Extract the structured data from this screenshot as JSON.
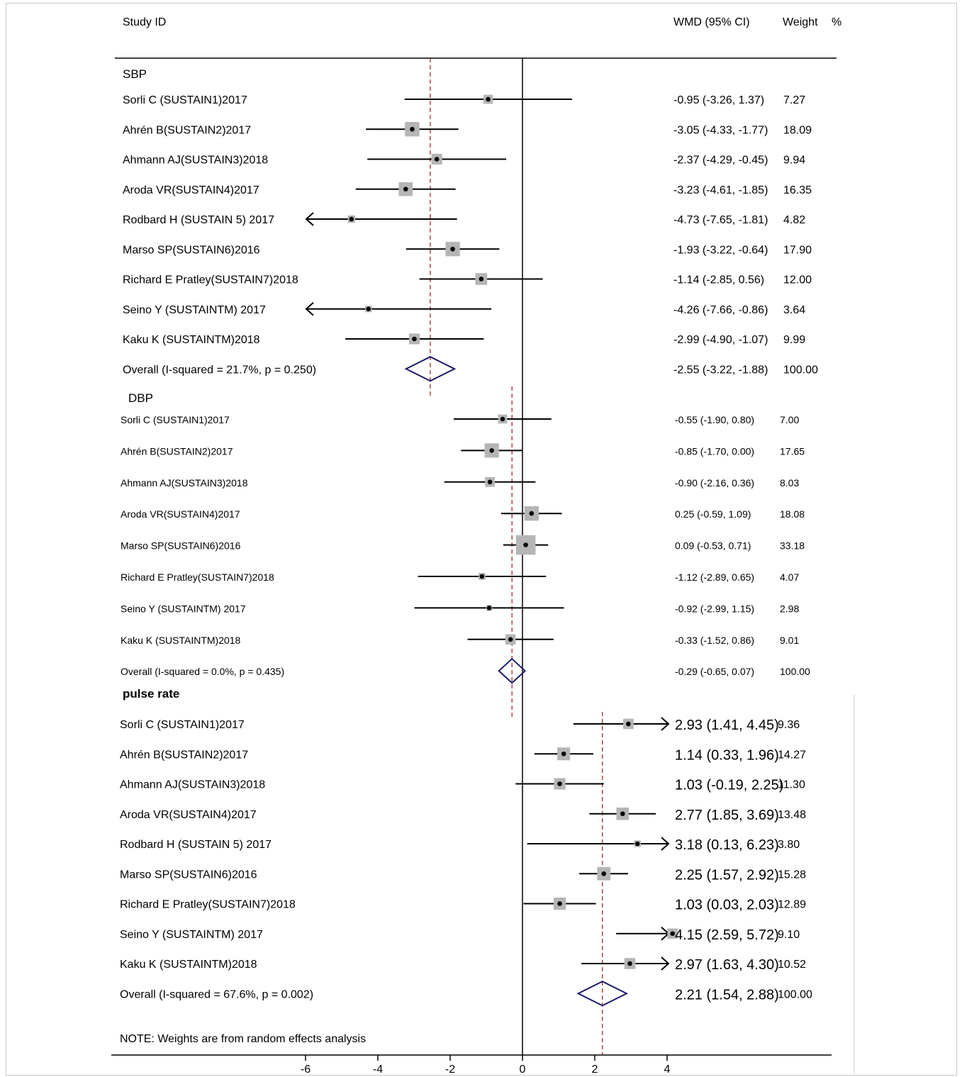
{
  "chart_data": {
    "type": "forest",
    "header": {
      "study": "Study   ID",
      "effect": "WMD (95% CI)",
      "weight": "Weight",
      "pct": "%"
    },
    "x_ticks": [
      -6,
      -4,
      -2,
      0,
      2,
      4
    ],
    "note": "NOTE: Weights are from random effects analysis",
    "groups": [
      {
        "title": "SBP",
        "overall_label": "Overall  (I-squared = 21.7%, p = 0.250)",
        "overall": {
          "est": -2.55,
          "lo": -3.22,
          "hi": -1.88,
          "ci_text": "-2.55 (-3.22, -1.88)",
          "weight": "100.00"
        },
        "studies": [
          {
            "label": "Sorli C (SUSTAIN1)2017",
            "est": -0.95,
            "lo": -3.26,
            "hi": 1.37,
            "ci_text": "-0.95 (-3.26, 1.37)",
            "weight": "7.27"
          },
          {
            "label": "Ahrén B(SUSTAIN2)2017",
            "est": -3.05,
            "lo": -4.33,
            "hi": -1.77,
            "ci_text": "-3.05 (-4.33, -1.77)",
            "weight": "18.09"
          },
          {
            "label": "Ahmann AJ(SUSTAIN3)2018",
            "est": -2.37,
            "lo": -4.29,
            "hi": -0.45,
            "ci_text": "-2.37 (-4.29, -0.45)",
            "weight": "9.94"
          },
          {
            "label": "Aroda VR(SUSTAIN4)2017",
            "est": -3.23,
            "lo": -4.61,
            "hi": -1.85,
            "ci_text": "-3.23 (-4.61, -1.85)",
            "weight": "16.35"
          },
          {
            "label": "Rodbard H (SUSTAIN 5) 2017",
            "est": -4.73,
            "lo": -7.65,
            "hi": -1.81,
            "ci_text": "-4.73 (-7.65, -1.81)",
            "weight": "4.82"
          },
          {
            "label": "Marso SP(SUSTAIN6)2016",
            "est": -1.93,
            "lo": -3.22,
            "hi": -0.64,
            "ci_text": "-1.93 (-3.22, -0.64)",
            "weight": "17.90"
          },
          {
            "label": "Richard E Pratley(SUSTAIN7)2018",
            "est": -1.14,
            "lo": -2.85,
            "hi": 0.56,
            "ci_text": "-1.14 (-2.85, 0.56)",
            "weight": "12.00"
          },
          {
            "label": "Seino Y (SUSTAINTM) 2017",
            "est": -4.26,
            "lo": -7.66,
            "hi": -0.86,
            "ci_text": "-4.26 (-7.66, -0.86)",
            "weight": "3.64"
          },
          {
            "label": "Kaku K (SUSTAINTM)2018",
            "est": -2.99,
            "lo": -4.9,
            "hi": -1.07,
            "ci_text": "-2.99 (-4.90, -1.07)",
            "weight": "9.99"
          }
        ]
      },
      {
        "title": "DBP",
        "overall_label": "Overall  (I-squared = 0.0%, p = 0.435)",
        "overall": {
          "est": -0.29,
          "lo": -0.65,
          "hi": 0.07,
          "ci_text": "-0.29 (-0.65, 0.07)",
          "weight": "100.00"
        },
        "studies": [
          {
            "label": "Sorli C (SUSTAIN1)2017",
            "est": -0.55,
            "lo": -1.9,
            "hi": 0.8,
            "ci_text": "-0.55 (-1.90, 0.80)",
            "weight": "7.00"
          },
          {
            "label": "Ahrén B(SUSTAIN2)2017",
            "est": -0.85,
            "lo": -1.7,
            "hi": 0.0,
            "ci_text": "-0.85 (-1.70, 0.00)",
            "weight": "17.65"
          },
          {
            "label": "Ahmann AJ(SUSTAIN3)2018",
            "est": -0.9,
            "lo": -2.16,
            "hi": 0.36,
            "ci_text": "-0.90 (-2.16, 0.36)",
            "weight": "8.03"
          },
          {
            "label": "Aroda VR(SUSTAIN4)2017",
            "est": 0.25,
            "lo": -0.59,
            "hi": 1.09,
            "ci_text": "0.25 (-0.59, 1.09)",
            "weight": "18.08"
          },
          {
            "label": "Marso SP(SUSTAIN6)2016",
            "est": 0.09,
            "lo": -0.53,
            "hi": 0.71,
            "ci_text": "0.09 (-0.53, 0.71)",
            "weight": "33.18"
          },
          {
            "label": "Richard E Pratley(SUSTAIN7)2018",
            "est": -1.12,
            "lo": -2.89,
            "hi": 0.65,
            "ci_text": "-1.12 (-2.89, 0.65)",
            "weight": "4.07"
          },
          {
            "label": "Seino Y (SUSTAINTM) 2017",
            "est": -0.92,
            "lo": -2.99,
            "hi": 1.15,
            "ci_text": "-0.92 (-2.99, 1.15)",
            "weight": "2.98"
          },
          {
            "label": "Kaku K (SUSTAINTM)2018",
            "est": -0.33,
            "lo": -1.52,
            "hi": 0.86,
            "ci_text": "-0.33 (-1.52, 0.86)",
            "weight": "9.01"
          }
        ]
      },
      {
        "title": "pulse rate",
        "overall_label": "Overall  (I-squared = 67.6%, p = 0.002)",
        "overall": {
          "est": 2.21,
          "lo": 1.54,
          "hi": 2.88,
          "ci_text": "2.21 (1.54, 2.88)",
          "weight": "100.00"
        },
        "studies": [
          {
            "label": "Sorli C (SUSTAIN1)2017",
            "est": 2.93,
            "lo": 1.41,
            "hi": 4.45,
            "ci_text": "2.93 (1.41, 4.45)",
            "weight": "9.36"
          },
          {
            "label": "Ahrén B(SUSTAIN2)2017",
            "est": 1.14,
            "lo": 0.33,
            "hi": 1.96,
            "ci_text": "1.14 (0.33, 1.96)",
            "weight": "14.27"
          },
          {
            "label": "Ahmann AJ(SUSTAIN3)2018",
            "est": 1.03,
            "lo": -0.19,
            "hi": 2.25,
            "ci_text": "1.03 (-0.19, 2.25)",
            "weight": "11.30"
          },
          {
            "label": "Aroda VR(SUSTAIN4)2017",
            "est": 2.77,
            "lo": 1.85,
            "hi": 3.69,
            "ci_text": "2.77 (1.85, 3.69)",
            "weight": "13.48"
          },
          {
            "label": "Rodbard H (SUSTAIN 5) 2017",
            "est": 3.18,
            "lo": 0.13,
            "hi": 6.23,
            "ci_text": "3.18 (0.13, 6.23)",
            "weight": "3.80"
          },
          {
            "label": "Marso SP(SUSTAIN6)2016",
            "est": 2.25,
            "lo": 1.57,
            "hi": 2.92,
            "ci_text": "2.25 (1.57, 2.92)",
            "weight": "15.28"
          },
          {
            "label": "Richard E Pratley(SUSTAIN7)2018",
            "est": 1.03,
            "lo": 0.03,
            "hi": 2.03,
            "ci_text": "1.03 (0.03, 2.03)",
            "weight": "12.89"
          },
          {
            "label": "Seino Y (SUSTAINTM) 2017",
            "est": 4.15,
            "lo": 2.59,
            "hi": 5.72,
            "ci_text": "4.15 (2.59, 5.72)",
            "weight": "9.10"
          },
          {
            "label": "Kaku K (SUSTAINTM)2018",
            "est": 2.97,
            "lo": 1.63,
            "hi": 4.3,
            "ci_text": "2.97 (1.63, 4.30)",
            "weight": "10.52"
          }
        ]
      }
    ],
    "colors": {
      "ci_line": "#000000",
      "weight_box": "#b5b5b5",
      "diamond": "#1a1a6e",
      "overall_line": "#a52a2a",
      "null_line": "#000000"
    }
  }
}
